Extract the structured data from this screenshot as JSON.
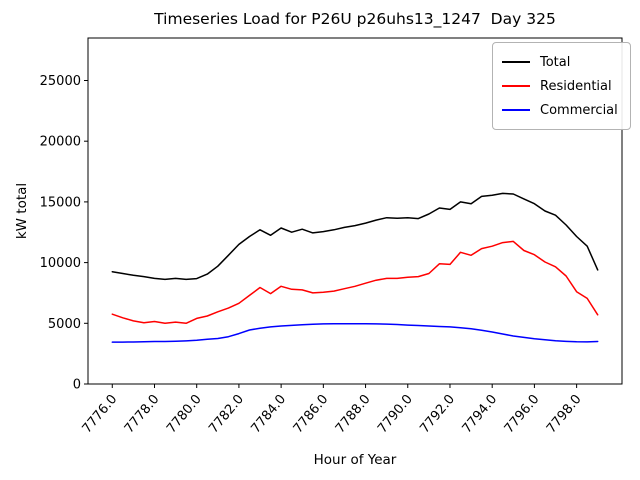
{
  "figure": {
    "title": "Timeseries Load for P26U p26uhs13_1247  Day 325"
  },
  "chart_data": {
    "type": "line",
    "title": "Timeseries Load for P26U p26uhs13_1247  Day 325",
    "xlabel": "Hour of Year",
    "ylabel": "kW total",
    "xlim": [
      7774.85,
      7800.15
    ],
    "ylim": [
      0,
      28500
    ],
    "grid": false,
    "legend_position": "upper right",
    "xticks": [
      7776,
      7778,
      7780,
      7782,
      7784,
      7786,
      7788,
      7790,
      7792,
      7794,
      7796,
      7798
    ],
    "xtick_labels": [
      "7776.0",
      "7778.0",
      "7780.0",
      "7782.0",
      "7784.0",
      "7786.0",
      "7788.0",
      "7790.0",
      "7792.0",
      "7794.0",
      "7796.0",
      "7798.0"
    ],
    "yticks": [
      0,
      5000,
      10000,
      15000,
      20000,
      25000
    ],
    "ytick_labels": [
      "0",
      "5000",
      "10000",
      "15000",
      "20000",
      "25000"
    ],
    "x": [
      7776.0,
      7776.5,
      7777.0,
      7777.5,
      7778.0,
      7778.5,
      7779.0,
      7779.5,
      7780.0,
      7780.5,
      7781.0,
      7781.5,
      7782.0,
      7782.5,
      7783.0,
      7783.5,
      7784.0,
      7784.5,
      7785.0,
      7785.5,
      7786.0,
      7786.5,
      7787.0,
      7787.5,
      7788.0,
      7788.5,
      7789.0,
      7789.5,
      7790.0,
      7790.5,
      7791.0,
      7791.5,
      7792.0,
      7792.5,
      7793.0,
      7793.5,
      7794.0,
      7794.5,
      7795.0,
      7795.5,
      7796.0,
      7796.5,
      7797.0,
      7797.5,
      7798.0,
      7798.5,
      7799.0
    ],
    "series": [
      {
        "name": "Total",
        "color": "#000000",
        "values": [
          9250,
          9100,
          8950,
          8850,
          8700,
          8620,
          8700,
          8620,
          8680,
          9050,
          9700,
          10600,
          11500,
          12150,
          12700,
          12250,
          12850,
          12500,
          12750,
          12450,
          12550,
          12700,
          12900,
          13050,
          13250,
          13500,
          13700,
          13650,
          13700,
          13620,
          14000,
          14500,
          14380,
          15000,
          14850,
          15450,
          15550,
          15700,
          15650,
          15250,
          14850,
          14250,
          13900,
          13100,
          12150,
          11350,
          9400
        ]
      },
      {
        "name": "Residential",
        "color": "#ff0000",
        "values": [
          5750,
          5450,
          5200,
          5050,
          5150,
          5000,
          5100,
          5000,
          5400,
          5600,
          5950,
          6250,
          6650,
          7300,
          7950,
          7450,
          8050,
          7800,
          7750,
          7500,
          7550,
          7650,
          7850,
          8050,
          8300,
          8550,
          8700,
          8700,
          8800,
          8850,
          9100,
          9900,
          9850,
          10850,
          10600,
          11150,
          11350,
          11650,
          11750,
          11000,
          10650,
          10050,
          9650,
          8900,
          7600,
          7050,
          5700
        ]
      },
      {
        "name": "Commercial",
        "color": "#0000ff",
        "values": [
          3450,
          3450,
          3460,
          3480,
          3500,
          3500,
          3520,
          3550,
          3600,
          3680,
          3750,
          3900,
          4150,
          4450,
          4600,
          4700,
          4780,
          4830,
          4880,
          4920,
          4950,
          4960,
          4970,
          4970,
          4960,
          4950,
          4930,
          4900,
          4850,
          4820,
          4780,
          4740,
          4700,
          4640,
          4550,
          4420,
          4280,
          4120,
          3950,
          3840,
          3720,
          3640,
          3560,
          3510,
          3480,
          3470,
          3500
        ]
      }
    ]
  }
}
